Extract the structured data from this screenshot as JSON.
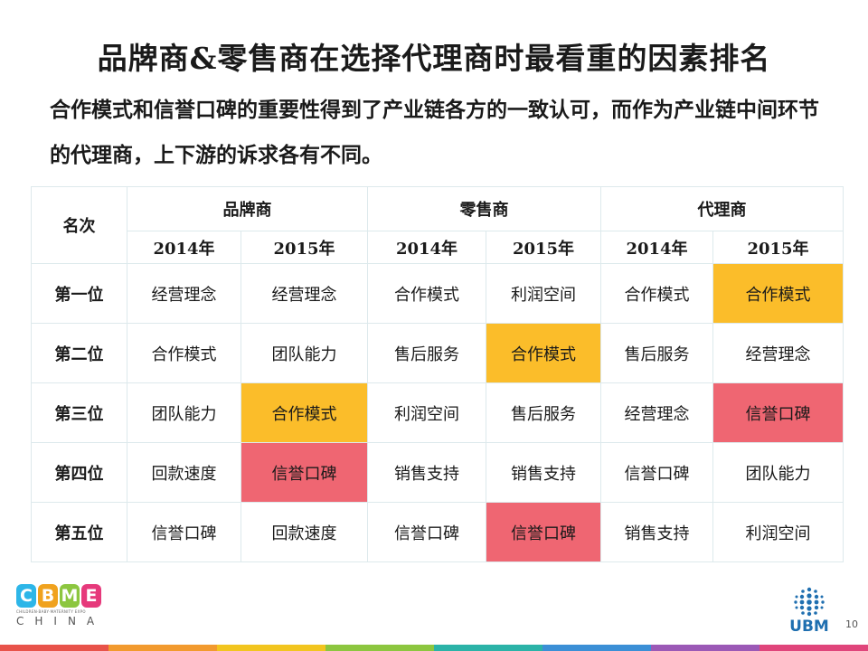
{
  "slide": {
    "title": "品牌商&零售商在选择代理商时最看重的因素排名",
    "subtitle": "合作模式和信誉口碑的重要性得到了产业链各方的一致认可，而作为产业链中间环节的代理商，上下游的诉求各有不同。",
    "page_number": "10"
  },
  "table": {
    "rank_header": "名次",
    "groups": [
      "品牌商",
      "零售商",
      "代理商"
    ],
    "years": [
      "2014年",
      "2015年",
      "2014年",
      "2015年",
      "2014年",
      "2015年"
    ],
    "rows": [
      {
        "rank": "第一位",
        "cells": [
          "经营理念",
          "经营理念",
          "合作模式",
          "利润空间",
          "合作模式",
          "合作模式"
        ]
      },
      {
        "rank": "第二位",
        "cells": [
          "合作模式",
          "团队能力",
          "售后服务",
          "合作模式",
          "售后服务",
          "经营理念"
        ]
      },
      {
        "rank": "第三位",
        "cells": [
          "团队能力",
          "合作模式",
          "利润空间",
          "售后服务",
          "经营理念",
          "信誉口碑"
        ]
      },
      {
        "rank": "第四位",
        "cells": [
          "回款速度",
          "信誉口碑",
          "销售支持",
          "销售支持",
          "信誉口碑",
          "团队能力"
        ]
      },
      {
        "rank": "第五位",
        "cells": [
          "信誉口碑",
          "回款速度",
          "信誉口碑",
          "信誉口碑",
          "销售支持",
          "利润空间"
        ]
      }
    ],
    "highlight_colors": {
      "cooperation_mode": "#fbbd2a",
      "reputation": "#ef6672"
    }
  },
  "logo": {
    "letters": [
      "C",
      "B",
      "M",
      "E"
    ],
    "letter_colors": [
      "#2db6e8",
      "#f0a21e",
      "#8cc63f",
      "#e6397b"
    ],
    "tagline": "CHILDREN·BABY·MATERNITY EXPO",
    "country": "CHINA"
  },
  "ubm": {
    "text": "UBM",
    "color": "#1f6fb0"
  },
  "footer_colors": [
    "#e8534a",
    "#f29a2e",
    "#f2c51f",
    "#8cc63f",
    "#2bb3a8",
    "#3b8fd6",
    "#9b59b6",
    "#e0457b"
  ]
}
